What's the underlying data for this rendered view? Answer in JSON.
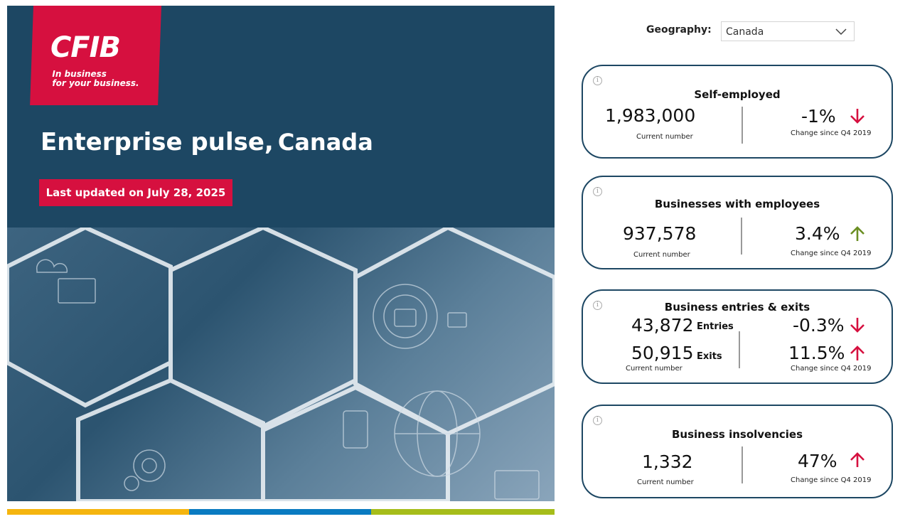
{
  "brand": {
    "logo_text": "CFIB",
    "tagline_line1": "In business",
    "tagline_line2": "for your business."
  },
  "hero": {
    "title": "Enterprise pulse,",
    "geography": "Canada",
    "updated": "Last updated on July 28, 2025"
  },
  "filter": {
    "label": "Geography:",
    "value": "Canada"
  },
  "cards": {
    "self_employed": {
      "title": "Self-employed",
      "value": "1,983,000",
      "value_caption": "Current number",
      "change": "-1%",
      "change_caption": "Change since Q4 2019",
      "direction": "down"
    },
    "employees": {
      "title": "Businesses with employees",
      "value": "937,578",
      "value_caption": "Current number",
      "change": "3.4%",
      "change_caption": "Change since Q4 2019",
      "direction": "up"
    },
    "entries_exits": {
      "title": "Business entries & exits",
      "entries_value": "43,872",
      "entries_label": "Entries",
      "exits_value": "50,915",
      "exits_label": "Exits",
      "value_caption": "Current number",
      "entries_change": "-0.3%",
      "exits_change": "11.5%",
      "change_caption": "Change since Q4 2019"
    },
    "insolvencies": {
      "title": "Business insolvencies",
      "value": "1,332",
      "value_caption": "Current number",
      "change": "47%",
      "change_caption": "Change since Q4 2019",
      "direction": "up"
    }
  },
  "colors": {
    "navy": "#1d4763",
    "red": "#d6103f",
    "green_up": "#6b8e23",
    "bar_yellow": "#f5b50f",
    "bar_blue": "#0a7bc1",
    "bar_green": "#a6bd1a"
  },
  "icons": [
    "info-icon",
    "chevron-down-icon",
    "arrow-down-icon",
    "arrow-up-icon"
  ]
}
